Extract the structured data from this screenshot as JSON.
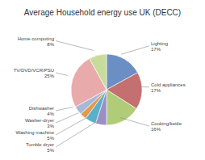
{
  "chart_data": {
    "type": "pie",
    "title": "Average Household energy use UK (DECC)",
    "categories": [
      "Lighting\n17%",
      "Cold appliances\n17%",
      "Cooking/kettle\n16%",
      "Tumble dryer\n5%",
      "Washing machine\n5%",
      "Washer-dryer\n3%",
      "Dishwasher\n4%",
      "TV/DVD/VCR/PSU\n25%",
      "Home computing\n8%"
    ],
    "values": [
      17,
      17,
      16,
      5,
      5,
      3,
      4,
      25,
      8
    ],
    "colors": [
      "#6b8ec4",
      "#c47070",
      "#b0cc78",
      "#9b8fc8",
      "#5ab0c8",
      "#e09a50",
      "#a8b8d8",
      "#e8aaaa",
      "#c8dc9a"
    ]
  }
}
